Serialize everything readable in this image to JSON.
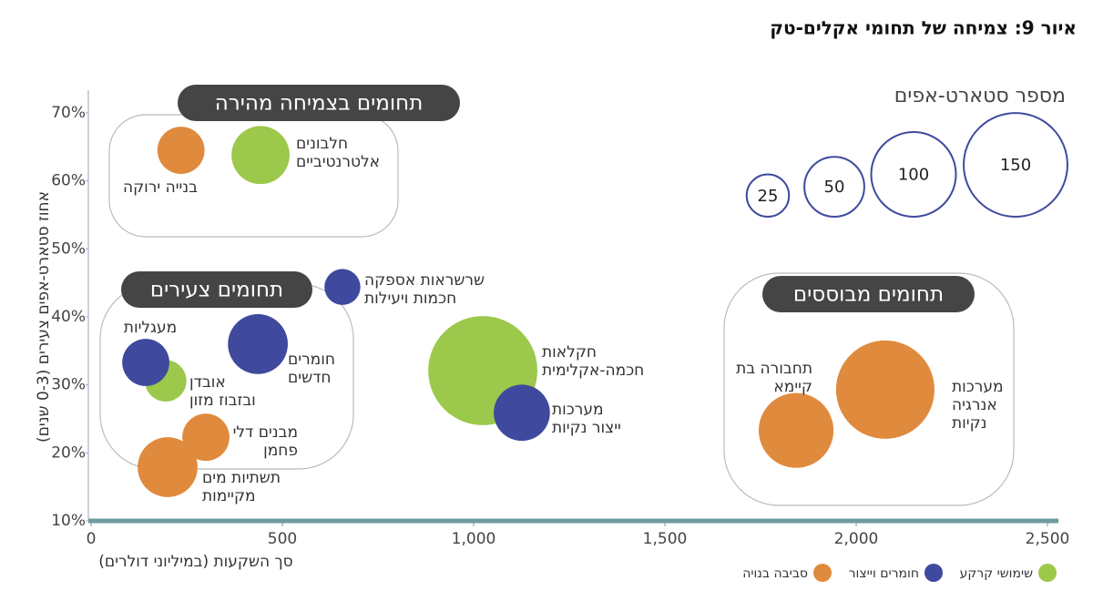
{
  "chart_data": {
    "type": "bubble",
    "title": "איור 9: צמיחה של תחומי אקלים-טק",
    "x_label": "סך השקעות (במיליוני דולרים)",
    "y_label": "אחוז סטארט-אפים צעירים (0-3 שנים)",
    "xlim": [
      0,
      2500
    ],
    "ylim": [
      10,
      70
    ],
    "xticks": [
      0,
      500,
      {
        "value": 1000,
        "label": "1,000"
      },
      {
        "value": 1500,
        "label": "1,500"
      },
      {
        "value": 2000,
        "label": "2,000"
      },
      {
        "value": 2500,
        "label": "2,500"
      }
    ],
    "yticks": [
      {
        "value": 10,
        "label": "10%"
      },
      {
        "value": 20,
        "label": "20%"
      },
      {
        "value": 30,
        "label": "30%"
      },
      {
        "value": 40,
        "label": "40%"
      },
      {
        "value": 50,
        "label": "50%"
      },
      {
        "value": 60,
        "label": "60%"
      },
      {
        "value": 70,
        "label": "70%"
      }
    ],
    "series": [
      {
        "name": "שימושי קרקע",
        "color": "#9cc84b",
        "labels": [
          [
            "חלבונים",
            "אלטרנטיביים"
          ],
          [
            "אובדן",
            "ובזבוז מזון"
          ],
          [
            "חקלאות",
            "חכמה-אקלימית"
          ]
        ],
        "x": [
          443,
          195,
          1024
        ],
        "values": [
          63.8,
          30.6,
          32.1
        ],
        "sizes": [
          47,
          24,
          166
        ]
      },
      {
        "name": "חומרים וייצור",
        "color": "#3f4a9e",
        "labels": [
          [
            "שרשראות אספקה",
            "חכמות ויעילות"
          ],
          [
            "מעגליות"
          ],
          [
            "חומרים",
            "חדשים"
          ],
          [
            "מערכות",
            "ייצור נקיות"
          ]
        ],
        "x": [
          657,
          143,
          436,
          1126
        ],
        "values": [
          44.4,
          33.3,
          36,
          25.9
        ],
        "sizes": [
          18,
          31,
          50,
          44
        ]
      },
      {
        "name": "סביבה בנויה",
        "color": "#e08a3e",
        "labels": [
          [
            "בנייה ירוקה"
          ],
          [
            "מבנים דלי",
            "פחמן"
          ],
          [
            "תשתיות מים",
            "מקיימות"
          ],
          [
            "תחבורה בת",
            "קיימא"
          ],
          [
            "מערכות",
            "אנרגיה",
            "נקיות"
          ]
        ],
        "x": [
          235,
          300,
          200,
          1843,
          2076
        ],
        "values": [
          64.5,
          22.3,
          17.9,
          23.3,
          29.3
        ],
        "sizes": [
          31,
          31,
          50,
          78,
          135
        ]
      }
    ],
    "groups": [
      "תחומים בצמיחה מהירה",
      "תחומים צעירים",
      "תחומים מבוססים"
    ],
    "size_legend": {
      "title": "מספר סטארט-אפים",
      "values": [
        25,
        50,
        100,
        150
      ]
    }
  }
}
